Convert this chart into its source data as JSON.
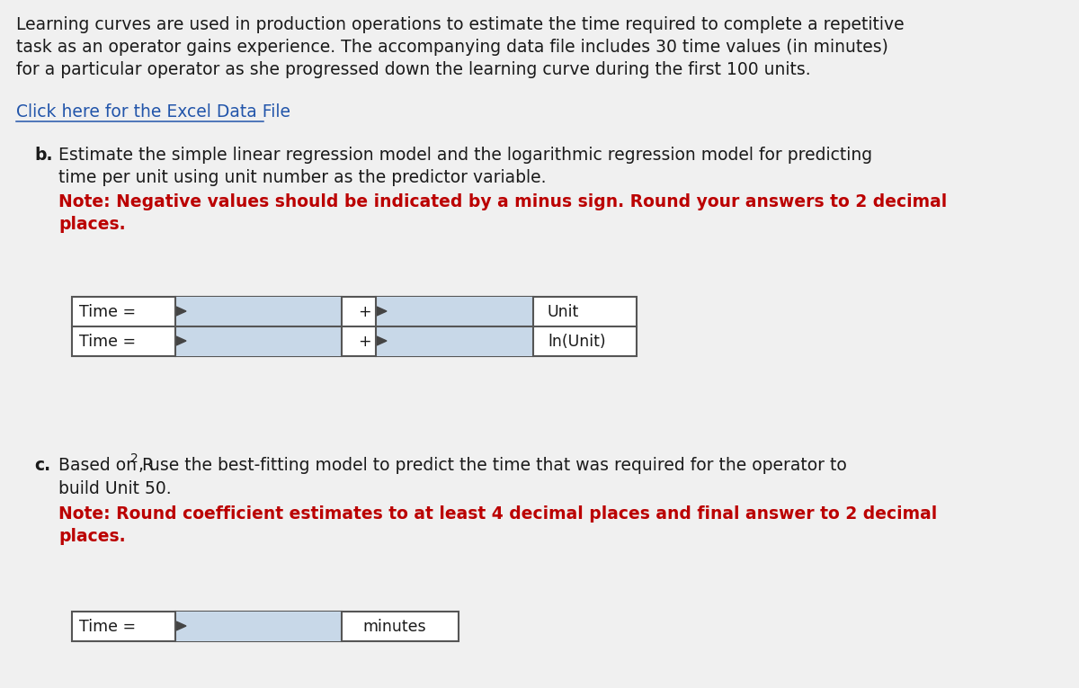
{
  "bg_color": "#f0f0f0",
  "white": "#ffffff",
  "input_color": "#c8d8e8",
  "border_color": "#555555",
  "text_color_black": "#1a1a1a",
  "text_color_red": "#bb0000",
  "text_color_blue": "#2255aa",
  "paragraph1_line1": "Learning curves are used in production operations to estimate the time required to complete a repetitive",
  "paragraph1_line2": "task as an operator gains experience. The accompanying data file includes 30 time values (in minutes)",
  "paragraph1_line3": "for a particular operator as she progressed down the learning curve during the first 100 units.",
  "link_text": "Click here for the Excel Data File",
  "b_label": "b.",
  "b_line1": "Estimate the simple linear regression model and the logarithmic regression model for predicting",
  "b_line2": "time per unit using unit number as the predictor variable.",
  "b_note_line1": "Note: Negative values should be indicated by a minus sign. Round your answers to 2 decimal",
  "b_note_line2": "places.",
  "time_label": "Time =",
  "plus_sign": "+",
  "unit_label": "Unit",
  "ln_unit_label": "ln(Unit)",
  "c_label": "c.",
  "c_line1_part1": "Based on R",
  "c_line1_sup": "2",
  "c_line1_part2": ", use the best-fitting model to predict the time that was required for the operator to",
  "c_line2": "build Unit 50.",
  "c_note_line1": "Note: Round coefficient estimates to at least 4 decimal places and final answer to 2 decimal",
  "c_note_line2": "places.",
  "time_label_c": "Time =",
  "minutes_label": "minutes",
  "fontsize_main": 13.5,
  "fontsize_table": 12.5,
  "fontsize_note": 13.5
}
